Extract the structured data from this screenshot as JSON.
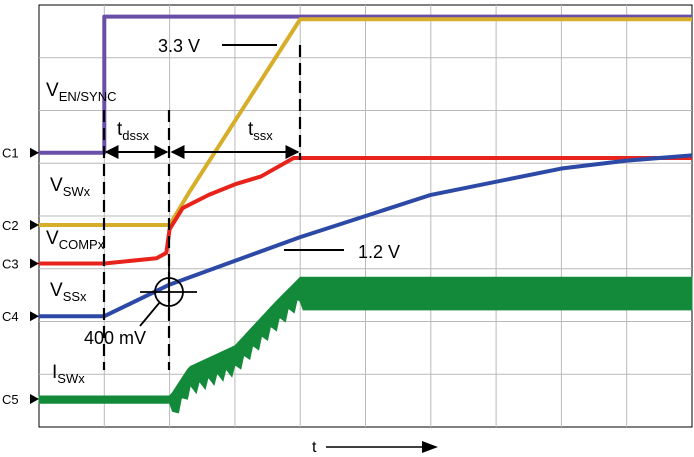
{
  "chart_data": {
    "type": "line",
    "title": "",
    "xlabel": "t",
    "ylabel": "",
    "grid": true,
    "x_divisions": 10,
    "y_divisions": 8,
    "channels": [
      {
        "id": "C1",
        "label": "C1"
      },
      {
        "id": "C2",
        "label": "C2"
      },
      {
        "id": "C3",
        "label": "C3"
      },
      {
        "id": "C4",
        "label": "C4"
      },
      {
        "id": "C5",
        "label": "C5"
      }
    ],
    "series": [
      {
        "name": "V_EN/SYNC",
        "channel": "C1",
        "color": "#6a4fa8",
        "x": [
          0,
          1,
          1,
          10
        ],
        "y": [
          2.8,
          2.8,
          0.22,
          0.22
        ]
      },
      {
        "name": "V_SWx",
        "channel": "C2",
        "color": "#d7ae2a",
        "x": [
          0,
          2.0,
          2.3,
          4.0,
          10
        ],
        "y": [
          4.17,
          4.17,
          3.55,
          0.27,
          0.27
        ]
      },
      {
        "name": "V_COMPx",
        "channel": "C3",
        "color": "#e8231c",
        "x": [
          0,
          1.0,
          1.8,
          1.95,
          2.0,
          2.2,
          2.6,
          3.0,
          3.4,
          3.9,
          10
        ],
        "y": [
          4.9,
          4.9,
          4.8,
          4.7,
          4.25,
          3.85,
          3.6,
          3.4,
          3.25,
          2.9,
          2.9
        ]
      },
      {
        "name": "V_SSx",
        "channel": "C4",
        "color": "#2d49a6",
        "x": [
          0,
          1.0,
          2.0,
          4.0,
          6.0,
          8.0,
          9.0,
          10
        ],
        "y": [
          5.9,
          5.9,
          5.3,
          4.4,
          3.6,
          3.1,
          2.95,
          2.85
        ]
      },
      {
        "name": "I_SWx",
        "channel": "C5",
        "color": "#138a3a",
        "x": [
          0,
          2.0,
          2.3,
          3.0,
          3.6,
          4.0,
          10
        ],
        "y": [
          7.47,
          7.47,
          6.9,
          6.5,
          5.7,
          5.2,
          5.2
        ]
      }
    ],
    "annotations": [
      {
        "text_main": "V",
        "text_sub": "EN/SYNC"
      },
      {
        "text_main": "V",
        "text_sub": "SWx"
      },
      {
        "text_main": "V",
        "text_sub": "COMPx"
      },
      {
        "text_main": "V",
        "text_sub": "SSx"
      },
      {
        "text_main": "I",
        "text_sub": "SWx"
      },
      {
        "text_main": "t",
        "text_sub": "dssx"
      },
      {
        "text_main": "t",
        "text_sub": "ssx"
      },
      {
        "text_main": "3.3 V"
      },
      {
        "text_main": "1.2 V"
      },
      {
        "text_main": "400 mV"
      }
    ]
  }
}
